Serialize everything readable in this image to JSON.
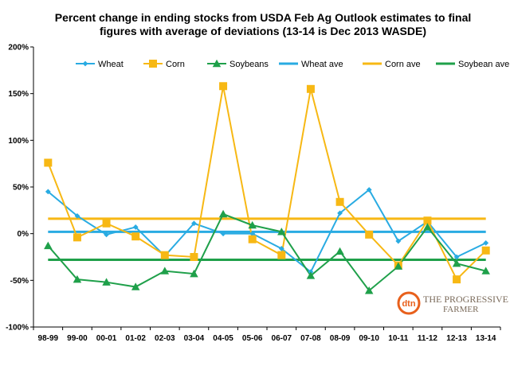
{
  "chart_data": {
    "type": "line",
    "title_line1": "Percent change in ending stocks from USDA Feb Ag Outlook estimates to final",
    "title_line2": "figures with average of deviations  (13-14 is Dec 2013 WASDE)",
    "categories": [
      "98-99",
      "99-00",
      "00-01",
      "01-02",
      "02-03",
      "03-04",
      "04-05",
      "05-06",
      "06-07",
      "07-08",
      "08-09",
      "09-10",
      "10-11",
      "11-12",
      "12-13",
      "13-14"
    ],
    "ylim": [
      -100,
      200
    ],
    "yticks": [
      -100,
      -50,
      0,
      50,
      100,
      150,
      200
    ],
    "ytick_labels": [
      "-100%",
      "-50%",
      "0%",
      "50%",
      "100%",
      "150%",
      "200%"
    ],
    "series": [
      {
        "name": "Wheat",
        "color": "#29ABE2",
        "marker": "diamond",
        "values": [
          45,
          19,
          -1,
          7,
          -24,
          11,
          0,
          0,
          -16,
          -41,
          22,
          47,
          -8,
          13,
          -25,
          -10
        ]
      },
      {
        "name": "Corn",
        "color": "#F7B814",
        "marker": "square",
        "values": [
          76,
          -4,
          11,
          -3,
          -23,
          -25,
          158,
          -6,
          -23,
          155,
          34,
          -1,
          -34,
          14,
          -49,
          -18
        ]
      },
      {
        "name": "Soybeans",
        "color": "#1FA04A",
        "marker": "triangle",
        "values": [
          -13,
          -49,
          -52,
          -57,
          -40,
          -43,
          21,
          9,
          2,
          -45,
          -19,
          -61,
          -35,
          7,
          -32,
          -40
        ]
      }
    ],
    "averages": [
      {
        "name": "Wheat ave",
        "color": "#29ABE2",
        "value": 2
      },
      {
        "name": "Corn ave",
        "color": "#F7B814",
        "value": 16
      },
      {
        "name": "Soybean ave",
        "color": "#1FA04A",
        "value": -28
      }
    ],
    "grid": false,
    "legend_position": "top"
  },
  "logo": {
    "badge": "dtn",
    "line1": "THE PROGRESSIVE",
    "line2": "FARMER"
  }
}
